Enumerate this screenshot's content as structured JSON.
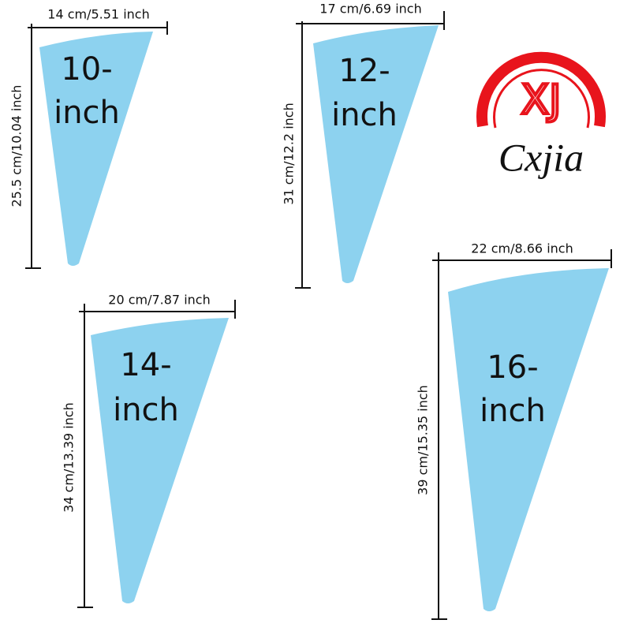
{
  "bags": [
    {
      "size": [
        "10-",
        "inch"
      ],
      "width": "14 cm/5.51 inch",
      "height": "25.5 cm/10.04 inch"
    },
    {
      "size": [
        "12-",
        "inch"
      ],
      "width": "17 cm/6.69 inch",
      "height": "31 cm/12.2 inch"
    },
    {
      "size": [
        "14-",
        "inch"
      ],
      "width": "20 cm/7.87 inch",
      "height": "34 cm/13.39 inch"
    },
    {
      "size": [
        "16-",
        "inch"
      ],
      "width": "22 cm/8.66 inch",
      "height": "39 cm/15.35 inch"
    }
  ],
  "logo": {
    "mark": "XJ",
    "brand": "Cxjia"
  }
}
